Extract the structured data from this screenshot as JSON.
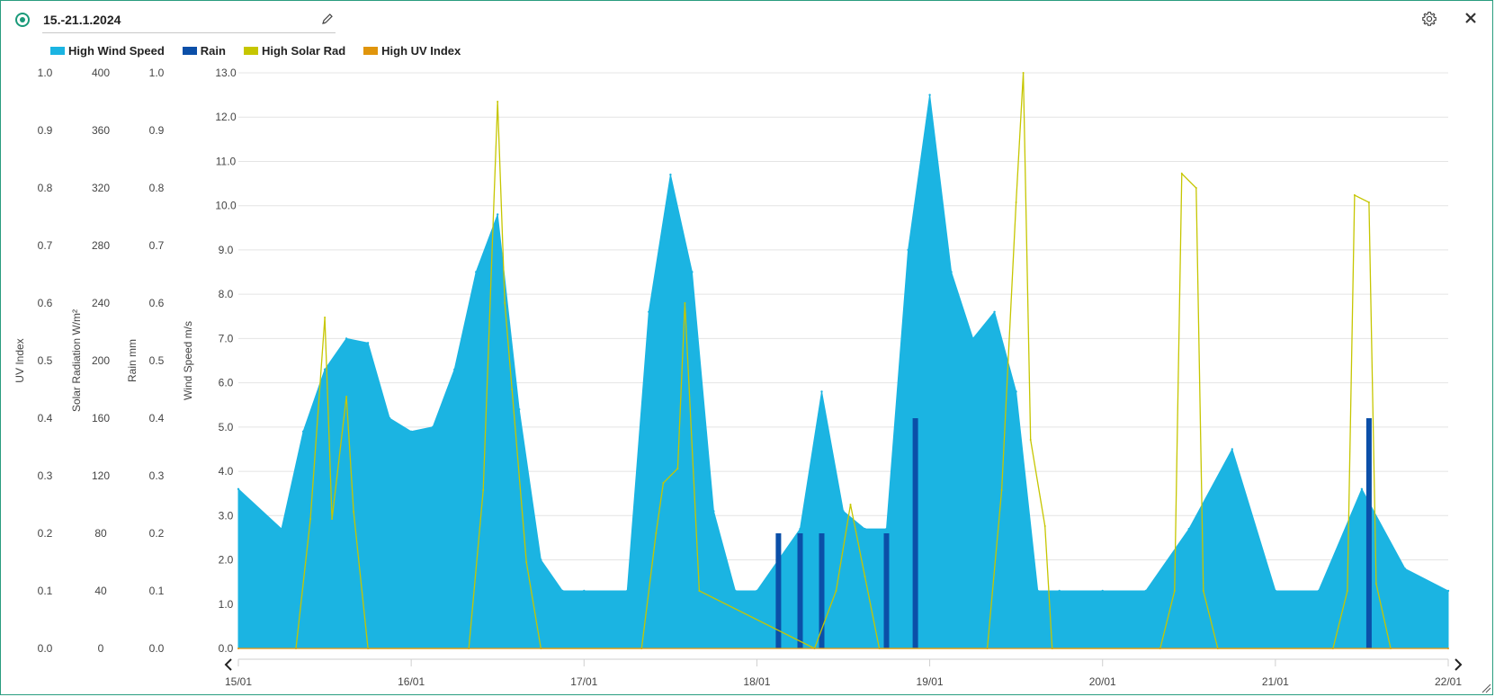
{
  "header": {
    "title": "15.-21.1.2024"
  },
  "legend": [
    {
      "label": "High Wind Speed",
      "color": "#1bb4e2"
    },
    {
      "label": "Rain",
      "color": "#0b4fa8"
    },
    {
      "label": "High Solar Rad",
      "color": "#c6c600"
    },
    {
      "label": "High UV Index",
      "color": "#e0950c"
    }
  ],
  "colors": {
    "wind": "#1bb4e2",
    "rain": "#0b4fa8",
    "solar": "#c6c600",
    "uv": "#e0950c",
    "frame": "#2a9d7f",
    "accent": "#1a9a7a"
  },
  "chart_data": {
    "type": "area",
    "x_ticks": [
      "15/01",
      "16/01",
      "17/01",
      "18/01",
      "19/01",
      "20/01",
      "21/01",
      "22/01"
    ],
    "xlim": [
      "2024-01-15",
      "2024-01-22"
    ],
    "grid": true,
    "legend_position": "top-left",
    "axes": {
      "wind": {
        "label": "Wind Speed m/s",
        "ticks": [
          "0.0",
          "1.0",
          "2.0",
          "3.0",
          "4.0",
          "5.0",
          "6.0",
          "7.0",
          "8.0",
          "9.0",
          "10.0",
          "11.0",
          "12.0",
          "13.0"
        ],
        "ylim": [
          0,
          13
        ]
      },
      "rain": {
        "label": "Rain mm",
        "ticks": [
          "0.0",
          "0.1",
          "0.2",
          "0.3",
          "0.4",
          "0.5",
          "0.6",
          "0.7",
          "0.8",
          "0.9",
          "1.0"
        ],
        "ylim": [
          0,
          1
        ]
      },
      "solar": {
        "label": "Solar Radiation W/m²",
        "ticks": [
          "0",
          "40",
          "80",
          "120",
          "160",
          "200",
          "240",
          "280",
          "320",
          "360",
          "400"
        ],
        "ylim": [
          0,
          400
        ]
      },
      "uv": {
        "label": "UV Index",
        "ticks": [
          "0.0",
          "0.1",
          "0.2",
          "0.3",
          "0.4",
          "0.5",
          "0.6",
          "0.7",
          "0.8",
          "0.9",
          "1.0"
        ],
        "ylim": [
          0,
          1
        ]
      }
    },
    "series": [
      {
        "name": "High Wind Speed",
        "axis": "wind",
        "kind": "area",
        "x": [
          "2024-01-15 00:00",
          "2024-01-15 06:00",
          "2024-01-15 09:00",
          "2024-01-15 12:00",
          "2024-01-15 15:00",
          "2024-01-15 18:00",
          "2024-01-15 21:00",
          "2024-01-16 00:00",
          "2024-01-16 03:00",
          "2024-01-16 06:00",
          "2024-01-16 09:00",
          "2024-01-16 12:00",
          "2024-01-16 15:00",
          "2024-01-16 18:00",
          "2024-01-16 21:00",
          "2024-01-17 00:00",
          "2024-01-17 06:00",
          "2024-01-17 09:00",
          "2024-01-17 12:00",
          "2024-01-17 15:00",
          "2024-01-17 18:00",
          "2024-01-17 21:00",
          "2024-01-18 00:00",
          "2024-01-18 06:00",
          "2024-01-18 09:00",
          "2024-01-18 12:00",
          "2024-01-18 15:00",
          "2024-01-18 18:00",
          "2024-01-18 21:00",
          "2024-01-19 00:00",
          "2024-01-19 03:00",
          "2024-01-19 06:00",
          "2024-01-19 09:00",
          "2024-01-19 12:00",
          "2024-01-19 15:00",
          "2024-01-19 18:00",
          "2024-01-20 00:00",
          "2024-01-20 06:00",
          "2024-01-20 12:00",
          "2024-01-20 18:00",
          "2024-01-21 00:00",
          "2024-01-21 06:00",
          "2024-01-21 12:00",
          "2024-01-21 18:00",
          "2024-01-22 00:00"
        ],
        "values": [
          3.6,
          2.7,
          4.9,
          6.3,
          7.0,
          6.9,
          5.2,
          4.9,
          5.0,
          6.3,
          8.5,
          9.8,
          5.4,
          2.0,
          1.3,
          1.3,
          1.3,
          7.6,
          10.7,
          8.5,
          3.1,
          1.3,
          1.3,
          2.7,
          5.8,
          3.1,
          2.7,
          2.7,
          9.0,
          12.5,
          8.5,
          7.0,
          7.6,
          5.8,
          1.3,
          1.3,
          1.3,
          1.3,
          2.7,
          4.5,
          1.3,
          1.3,
          3.6,
          1.8,
          1.3
        ]
      },
      {
        "name": "Rain",
        "axis": "rain",
        "kind": "bars",
        "x": [
          "2024-01-18 03:00",
          "2024-01-18 06:00",
          "2024-01-18 09:00",
          "2024-01-18 18:00",
          "2024-01-18 22:00",
          "2024-01-21 13:00"
        ],
        "values": [
          0.2,
          0.2,
          0.2,
          0.2,
          0.4,
          0.4
        ]
      },
      {
        "name": "High Solar Rad",
        "axis": "solar",
        "kind": "line",
        "x": [
          "2024-01-15 08:00",
          "2024-01-15 10:00",
          "2024-01-15 12:00",
          "2024-01-15 13:00",
          "2024-01-15 15:00",
          "2024-01-15 16:00",
          "2024-01-15 18:00",
          "2024-01-16 08:00",
          "2024-01-16 10:00",
          "2024-01-16 12:00",
          "2024-01-16 13:00",
          "2024-01-16 14:00",
          "2024-01-16 16:00",
          "2024-01-16 18:00",
          "2024-01-17 08:00",
          "2024-01-17 10:00",
          "2024-01-17 11:00",
          "2024-01-17 13:00",
          "2024-01-17 14:00",
          "2024-01-17 16:00",
          "2024-01-18 08:00",
          "2024-01-18 11:00",
          "2024-01-18 13:00",
          "2024-01-18 15:00",
          "2024-01-18 17:00",
          "2024-01-19 08:00",
          "2024-01-19 10:00",
          "2024-01-19 12:00",
          "2024-01-19 13:00",
          "2024-01-19 14:00",
          "2024-01-19 16:00",
          "2024-01-19 17:00",
          "2024-01-20 08:00",
          "2024-01-20 10:00",
          "2024-01-20 11:00",
          "2024-01-20 13:00",
          "2024-01-20 14:00",
          "2024-01-20 16:00",
          "2024-01-21 08:00",
          "2024-01-21 10:00",
          "2024-01-21 11:00",
          "2024-01-21 13:00",
          "2024-01-21 14:00",
          "2024-01-21 16:00"
        ],
        "values": [
          0,
          90,
          230,
          90,
          175,
          95,
          0,
          0,
          110,
          380,
          240,
          180,
          60,
          0,
          0,
          80,
          115,
          125,
          240,
          40,
          0,
          40,
          100,
          50,
          0,
          0,
          110,
          310,
          400,
          145,
          85,
          0,
          0,
          40,
          330,
          320,
          40,
          0,
          0,
          40,
          315,
          310,
          45,
          0
        ]
      },
      {
        "name": "High UV Index",
        "axis": "uv",
        "kind": "line",
        "x": [
          "2024-01-15 00:00",
          "2024-01-22 00:00"
        ],
        "values": [
          0,
          0
        ]
      }
    ]
  }
}
